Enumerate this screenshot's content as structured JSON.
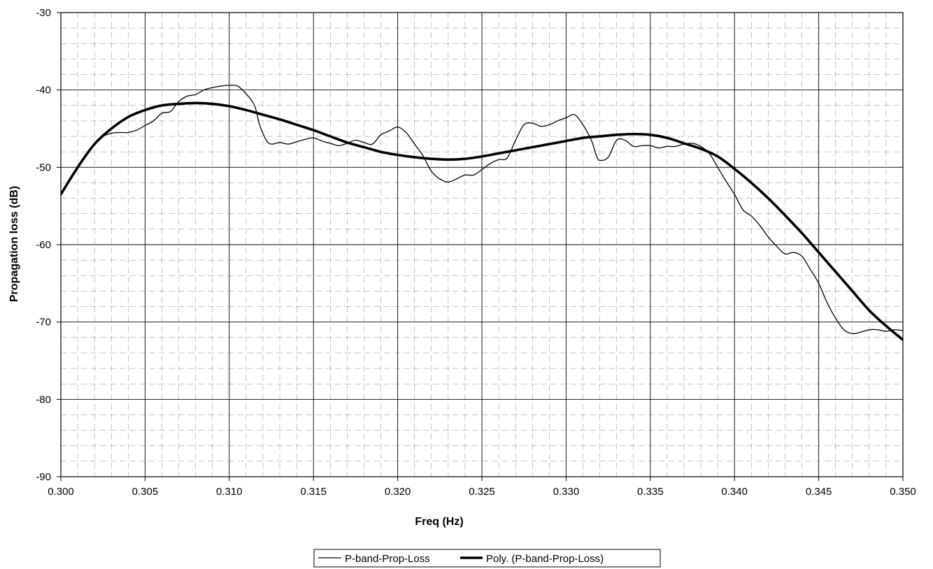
{
  "chart_data": {
    "type": "line",
    "title": "",
    "xlabel": "Freq (Hz)",
    "ylabel": "Propagation loss (dB)",
    "xlim": [
      0.3,
      0.35
    ],
    "ylim": [
      -90,
      -30
    ],
    "x_ticks": [
      "0.300",
      "0.305",
      "0.310",
      "0.315",
      "0.320",
      "0.325",
      "0.330",
      "0.335",
      "0.340",
      "0.345",
      "0.350"
    ],
    "y_ticks": [
      "-90",
      "-80",
      "-70",
      "-60",
      "-50",
      "-40",
      "-30"
    ],
    "grid": true,
    "minor_grid": true,
    "legend_position": "bottom-center",
    "colors": {
      "series": "#000000",
      "grid": "#000000",
      "background": "#ffffff"
    },
    "series": [
      {
        "name": "P-band-Prop-Loss",
        "style": "thin",
        "x": [
          0.3,
          0.301,
          0.302,
          0.3025,
          0.303,
          0.3035,
          0.304,
          0.3045,
          0.305,
          0.3055,
          0.306,
          0.3065,
          0.307,
          0.3075,
          0.308,
          0.3085,
          0.309,
          0.3095,
          0.31,
          0.3105,
          0.311,
          0.3115,
          0.3118,
          0.3122,
          0.3125,
          0.313,
          0.3135,
          0.314,
          0.3145,
          0.315,
          0.3155,
          0.316,
          0.3165,
          0.317,
          0.3175,
          0.318,
          0.3185,
          0.319,
          0.3195,
          0.32,
          0.3205,
          0.321,
          0.3215,
          0.322,
          0.3225,
          0.323,
          0.3235,
          0.324,
          0.3245,
          0.325,
          0.3255,
          0.326,
          0.3265,
          0.327,
          0.3275,
          0.328,
          0.3285,
          0.329,
          0.3295,
          0.33,
          0.3305,
          0.331,
          0.3315,
          0.3318,
          0.332,
          0.3325,
          0.333,
          0.3335,
          0.334,
          0.3345,
          0.335,
          0.3355,
          0.336,
          0.3365,
          0.337,
          0.3375,
          0.338,
          0.3385,
          0.339,
          0.3395,
          0.34,
          0.3405,
          0.341,
          0.3415,
          0.342,
          0.3425,
          0.343,
          0.3435,
          0.344,
          0.3445,
          0.345,
          0.3455,
          0.346,
          0.3465,
          0.347,
          0.3475,
          0.348,
          0.3485,
          0.349,
          0.3495,
          0.35
        ],
        "values": [
          -53.5,
          -50.0,
          -47.0,
          -46.0,
          -45.6,
          -45.5,
          -45.5,
          -45.2,
          -44.6,
          -44.0,
          -43.0,
          -42.8,
          -41.5,
          -40.8,
          -40.6,
          -40.0,
          -39.7,
          -39.5,
          -39.4,
          -39.5,
          -40.5,
          -42.0,
          -44.5,
          -46.5,
          -47.0,
          -46.8,
          -47.0,
          -46.7,
          -46.4,
          -46.2,
          -46.6,
          -46.9,
          -47.2,
          -46.9,
          -46.5,
          -46.8,
          -47.0,
          -45.8,
          -45.3,
          -44.8,
          -45.5,
          -47.0,
          -48.5,
          -50.5,
          -51.5,
          -51.9,
          -51.5,
          -51.0,
          -51.0,
          -50.3,
          -49.5,
          -49.0,
          -48.8,
          -46.5,
          -44.5,
          -44.3,
          -44.7,
          -44.5,
          -44.0,
          -43.6,
          -43.2,
          -44.5,
          -46.5,
          -48.5,
          -49.1,
          -48.7,
          -46.5,
          -46.5,
          -47.3,
          -47.2,
          -47.2,
          -47.5,
          -47.3,
          -47.3,
          -47.0,
          -46.9,
          -47.3,
          -48.2,
          -50.0,
          -51.8,
          -53.5,
          -55.5,
          -56.3,
          -57.5,
          -59.0,
          -60.2,
          -61.2,
          -61.0,
          -61.5,
          -63.2,
          -65.0,
          -67.5,
          -69.5,
          -71.0,
          -71.5,
          -71.3,
          -71.0,
          -71.0,
          -71.2,
          -71.0,
          -71.1
        ],
        "stroke_width": 1.3
      },
      {
        "name": "Poly. (P-band-Prop-Loss)",
        "style": "thick",
        "x": [
          0.3,
          0.301,
          0.302,
          0.303,
          0.304,
          0.305,
          0.306,
          0.307,
          0.308,
          0.309,
          0.31,
          0.311,
          0.312,
          0.313,
          0.314,
          0.315,
          0.316,
          0.317,
          0.318,
          0.319,
          0.32,
          0.321,
          0.322,
          0.323,
          0.324,
          0.325,
          0.326,
          0.327,
          0.328,
          0.329,
          0.33,
          0.331,
          0.332,
          0.333,
          0.334,
          0.335,
          0.336,
          0.337,
          0.338,
          0.339,
          0.34,
          0.341,
          0.342,
          0.343,
          0.344,
          0.345,
          0.346,
          0.347,
          0.348,
          0.349,
          0.35
        ],
        "values": [
          -53.5,
          -50.0,
          -47.0,
          -45.0,
          -43.5,
          -42.6,
          -42.0,
          -41.8,
          -41.7,
          -41.8,
          -42.1,
          -42.6,
          -43.2,
          -43.8,
          -44.5,
          -45.2,
          -46.0,
          -46.8,
          -47.4,
          -48.0,
          -48.4,
          -48.7,
          -48.9,
          -49.0,
          -48.9,
          -48.6,
          -48.2,
          -47.8,
          -47.4,
          -47.0,
          -46.6,
          -46.2,
          -46.0,
          -45.8,
          -45.7,
          -45.8,
          -46.2,
          -46.9,
          -47.6,
          -48.6,
          -50.2,
          -52.0,
          -54.0,
          -56.2,
          -58.5,
          -61.0,
          -63.5,
          -66.0,
          -68.5,
          -70.5,
          -72.3
        ],
        "stroke_width": 3.6
      }
    ]
  }
}
